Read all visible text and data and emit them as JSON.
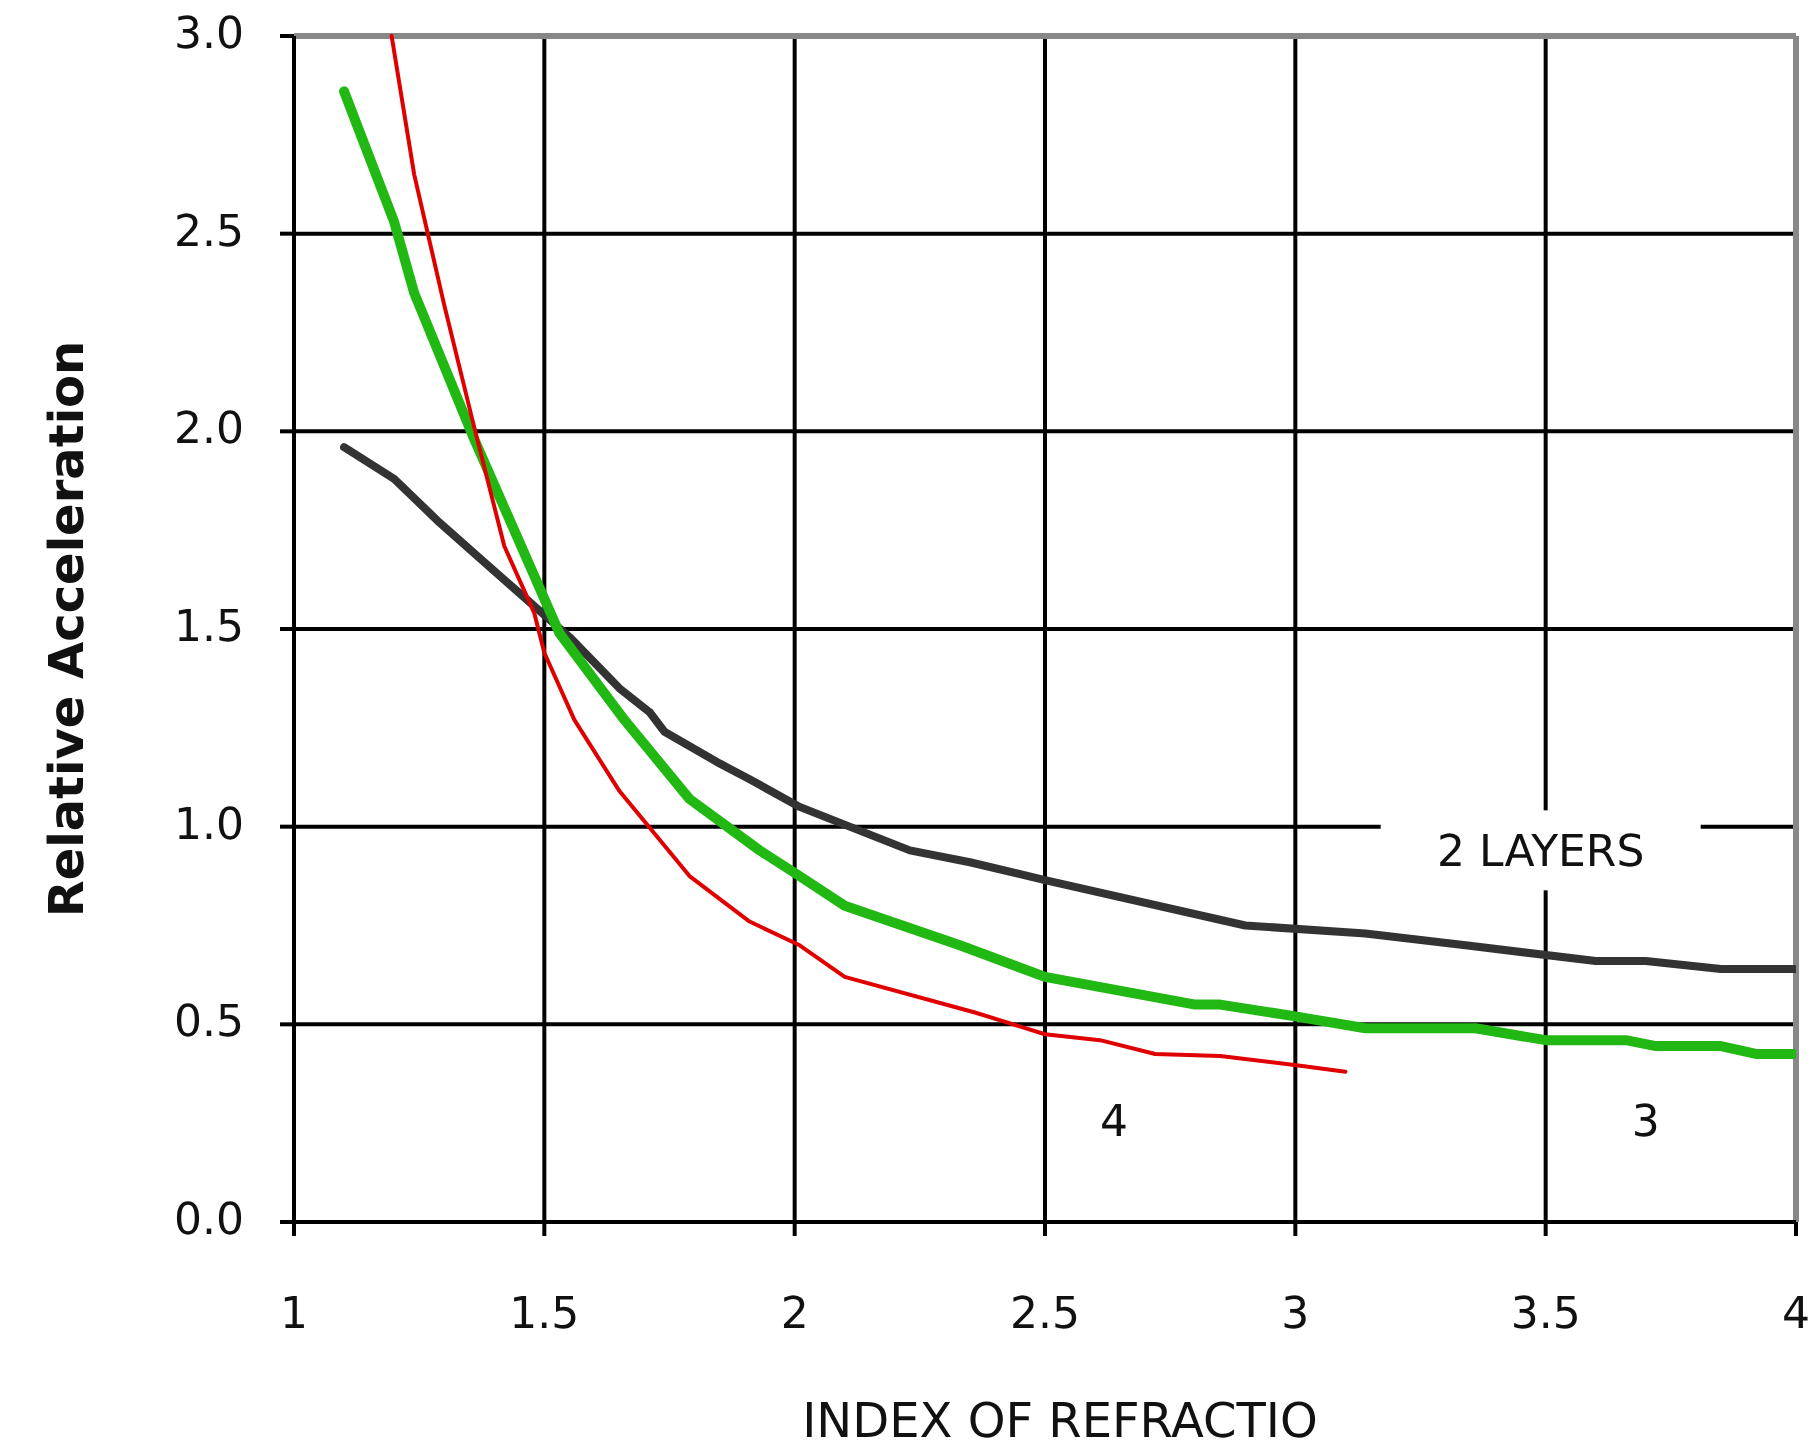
{
  "chart_data": {
    "type": "line",
    "xlabel": "INDEX OF REFRACTIO",
    "ylabel": "Relative Acceleration",
    "xlim": [
      1,
      4
    ],
    "ylim": [
      0,
      3
    ],
    "xticks": [
      1,
      1.5,
      2,
      2.5,
      3,
      3.5,
      4
    ],
    "yticks": [
      {
        "value": 0,
        "label": "0.0"
      },
      {
        "value": 0.5,
        "label": "0.5"
      },
      {
        "value": 1,
        "label": "1.0"
      },
      {
        "value": 1.5,
        "label": "1.5"
      },
      {
        "value": 2,
        "label": "2.0"
      },
      {
        "value": 2.5,
        "label": "2.5"
      },
      {
        "value": 3,
        "label": "3.0"
      }
    ],
    "grid": true,
    "marker": "none",
    "line_style": "solid",
    "series": [
      {
        "name": "2 LAYERS",
        "color": "#333333",
        "x": [
          1.1,
          1.2,
          1.29,
          1.37,
          1.46,
          1.55,
          1.65,
          1.71,
          1.74,
          1.85,
          1.91,
          2.01,
          2.13,
          2.23,
          2.35,
          2.5,
          2.9,
          3.14,
          3.34,
          3.6,
          3.7,
          3.85,
          4.0
        ],
        "values": [
          1.96,
          1.88,
          1.77,
          1.68,
          1.58,
          1.48,
          1.35,
          1.29,
          1.24,
          1.16,
          1.12,
          1.05,
          0.99,
          0.94,
          0.91,
          0.865,
          0.75,
          0.73,
          0.7,
          0.66,
          0.66,
          0.64,
          0.64
        ]
      },
      {
        "name": "3",
        "color": "#22b814",
        "x": [
          1.1,
          1.2,
          1.24,
          1.36,
          1.53,
          1.66,
          1.79,
          1.93,
          2.01,
          2.1,
          2.33,
          2.5,
          2.8,
          2.85,
          3.0,
          3.14,
          3.36,
          3.5,
          3.66,
          3.72,
          3.85,
          3.92,
          4.0
        ],
        "values": [
          2.86,
          2.53,
          2.35,
          1.98,
          1.49,
          1.27,
          1.07,
          0.94,
          0.875,
          0.8,
          0.7,
          0.62,
          0.55,
          0.55,
          0.52,
          0.49,
          0.49,
          0.46,
          0.46,
          0.445,
          0.445,
          0.425,
          0.425
        ]
      },
      {
        "name": "4",
        "color": "#e00000",
        "x": [
          1.195,
          1.24,
          1.3,
          1.36,
          1.42,
          1.48,
          1.5,
          1.56,
          1.65,
          1.79,
          1.91,
          2.01,
          2.1,
          2.36,
          2.5,
          2.61,
          2.72,
          2.85,
          3.01,
          3.1
        ],
        "values": [
          3.0,
          2.65,
          2.32,
          2.01,
          1.71,
          1.54,
          1.44,
          1.27,
          1.09,
          0.875,
          0.76,
          0.7,
          0.62,
          0.53,
          0.475,
          0.46,
          0.425,
          0.42,
          0.395,
          0.38
        ]
      }
    ]
  }
}
